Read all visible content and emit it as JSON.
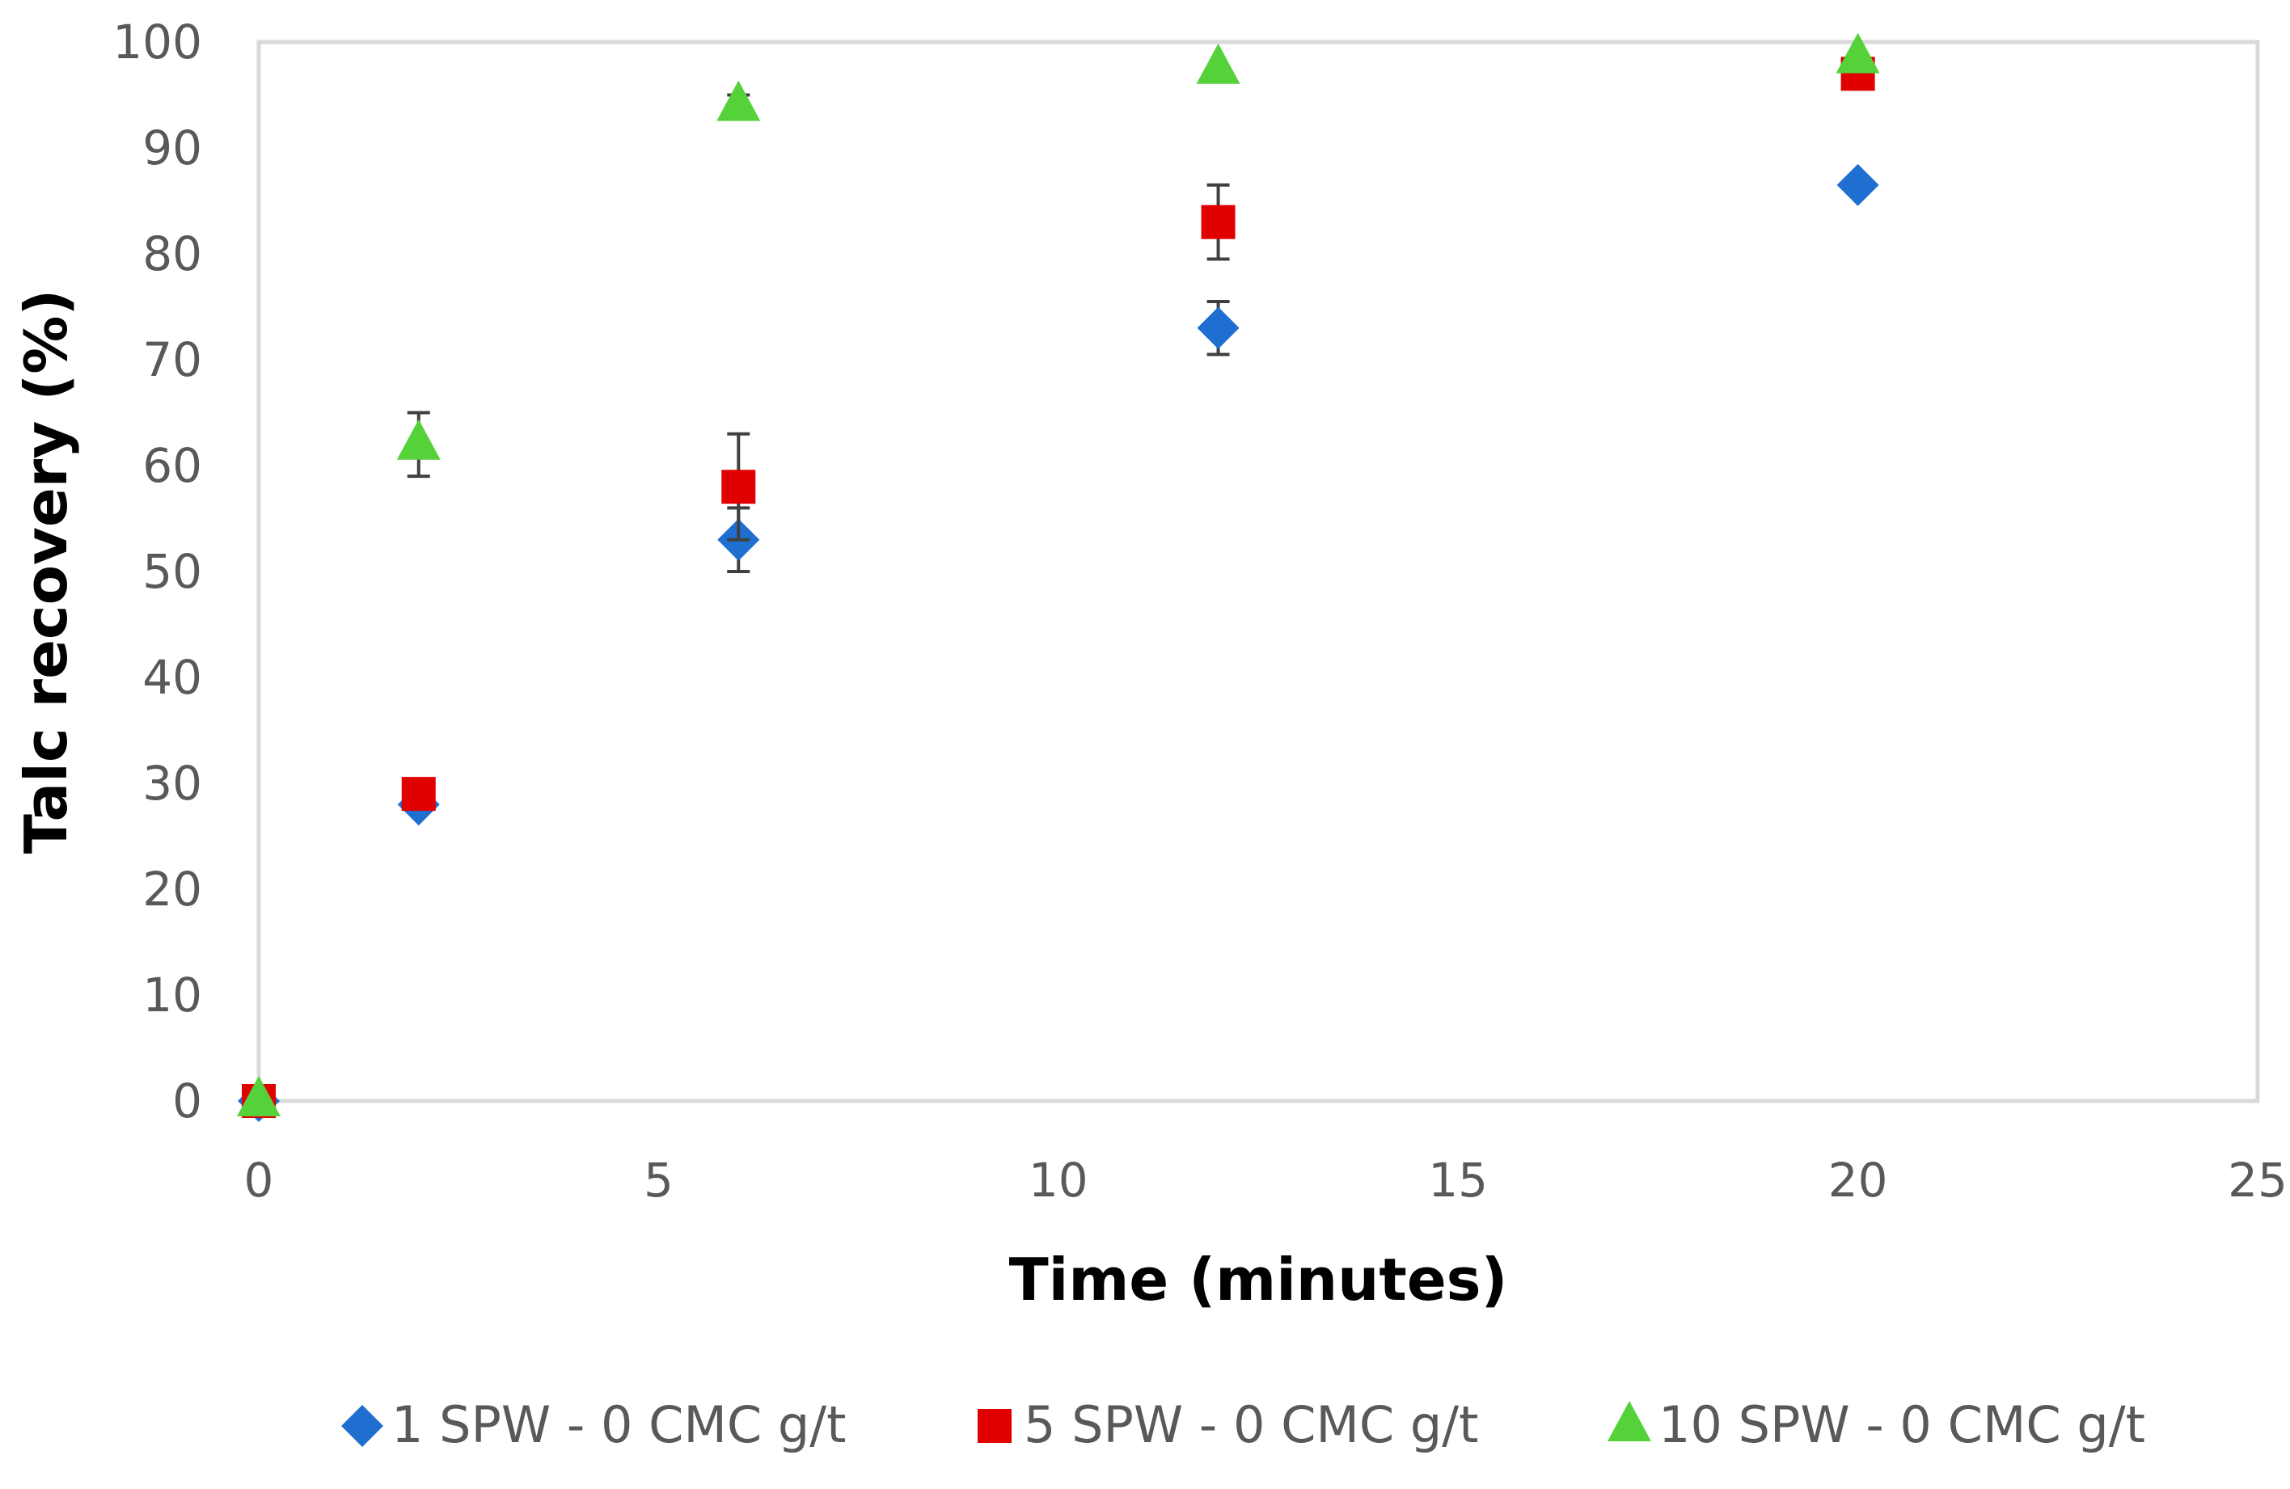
{
  "chart_data": {
    "type": "scatter",
    "title": "",
    "xlabel": "Time (minutes)",
    "ylabel": "Talc recovery (%)",
    "xlim": [
      0,
      25
    ],
    "ylim": [
      0,
      100
    ],
    "xticks": [
      0,
      5,
      10,
      15,
      20,
      25
    ],
    "yticks": [
      0,
      10,
      20,
      30,
      40,
      50,
      60,
      70,
      80,
      90,
      100
    ],
    "grid": false,
    "legend_position": "bottom",
    "series": [
      {
        "name": "1 SPW - 0 CMC g/t",
        "marker": "diamond",
        "color": "#1f6fd1",
        "x": [
          0,
          2,
          6,
          12,
          20
        ],
        "y": [
          0,
          28,
          53,
          73,
          86.5
        ],
        "err": [
          0,
          0,
          3,
          2.5,
          0
        ]
      },
      {
        "name": "5 SPW - 0 CMC g/t",
        "marker": "square",
        "color": "#e00000",
        "x": [
          0,
          2,
          6,
          12,
          20
        ],
        "y": [
          0,
          29,
          58,
          83,
          97
        ],
        "err": [
          0,
          0,
          5,
          3.5,
          0
        ]
      },
      {
        "name": "10 SPW - 0 CMC g/t",
        "marker": "triangle",
        "color": "#55d13a",
        "x": [
          0,
          2,
          6,
          12,
          20
        ],
        "y": [
          0,
          62,
          94,
          97.5,
          98.5
        ],
        "err": [
          0,
          3,
          1,
          0,
          0
        ]
      }
    ]
  }
}
